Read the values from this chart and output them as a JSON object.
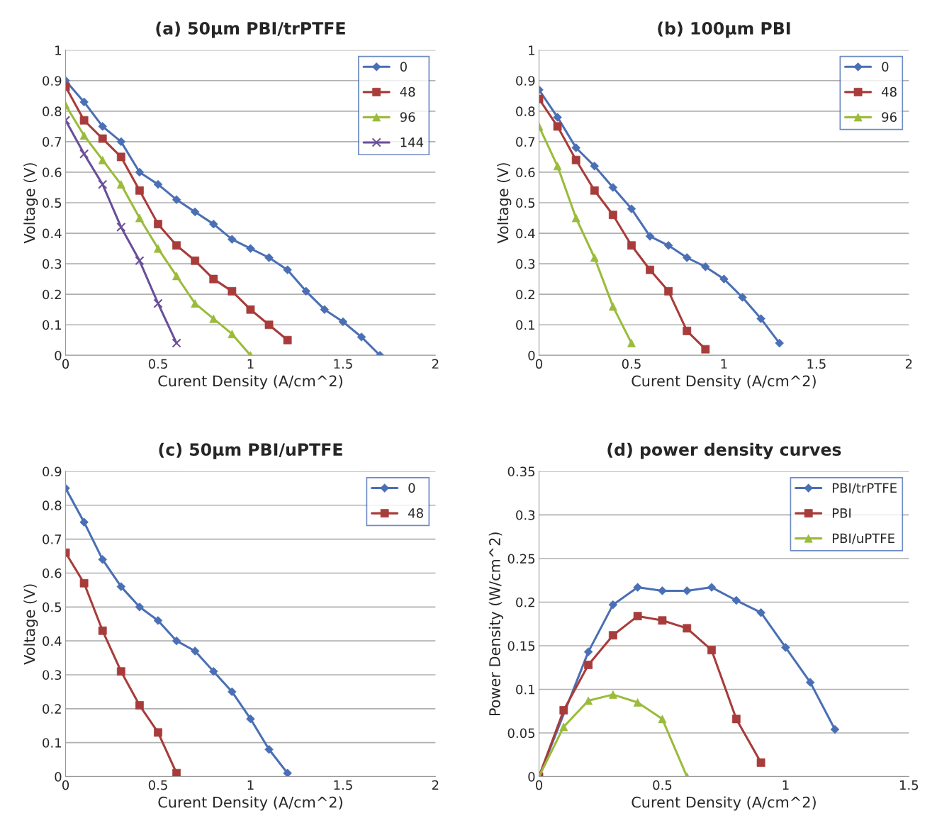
{
  "chart_data": [
    {
      "type": "line",
      "title": "(a) 50µm PBI/trPTFE",
      "xlabel": "Curent Density (A/cm^2)",
      "ylabel": "Voltage (V)",
      "xlim": [
        0,
        2
      ],
      "xticks": [
        0,
        0.5,
        1,
        1.5,
        2
      ],
      "ylim": [
        0,
        1
      ],
      "yticks": [
        0,
        0.1,
        0.2,
        0.3,
        0.4,
        0.5,
        0.6,
        0.7,
        0.8,
        0.9,
        1
      ],
      "grid": "y",
      "legend": "top right",
      "series": [
        {
          "name": "0",
          "color": "#4a6fb5",
          "marker": "diamond",
          "x": [
            0,
            0.1,
            0.2,
            0.3,
            0.4,
            0.5,
            0.6,
            0.7,
            0.8,
            0.9,
            1.0,
            1.1,
            1.2,
            1.3,
            1.4,
            1.5,
            1.6,
            1.7
          ],
          "values": [
            0.9,
            0.83,
            0.75,
            0.7,
            0.6,
            0.56,
            0.51,
            0.47,
            0.43,
            0.38,
            0.35,
            0.32,
            0.28,
            0.21,
            0.15,
            0.11,
            0.06,
            0.0
          ]
        },
        {
          "name": "48",
          "color": "#a83c3a",
          "marker": "square",
          "x": [
            0,
            0.1,
            0.2,
            0.3,
            0.4,
            0.5,
            0.6,
            0.7,
            0.8,
            0.9,
            1.0,
            1.1,
            1.2
          ],
          "values": [
            0.88,
            0.77,
            0.71,
            0.65,
            0.54,
            0.43,
            0.36,
            0.31,
            0.25,
            0.21,
            0.15,
            0.1,
            0.05
          ]
        },
        {
          "name": "96",
          "color": "#9bbb3b",
          "marker": "triangle",
          "x": [
            0,
            0.1,
            0.2,
            0.3,
            0.4,
            0.5,
            0.6,
            0.7,
            0.8,
            0.9,
            1.0
          ],
          "values": [
            0.82,
            0.72,
            0.64,
            0.56,
            0.45,
            0.35,
            0.26,
            0.17,
            0.12,
            0.07,
            0.0
          ]
        },
        {
          "name": "144",
          "color": "#6a4f9a",
          "marker": "cross",
          "x": [
            0,
            0.1,
            0.2,
            0.3,
            0.4,
            0.5,
            0.6
          ],
          "values": [
            0.77,
            0.66,
            0.56,
            0.42,
            0.31,
            0.17,
            0.04
          ]
        }
      ]
    },
    {
      "type": "line",
      "title": "(b) 100µm PBI",
      "xlabel": "Curent Density (A/cm^2)",
      "ylabel": "Voltage (V)",
      "xlim": [
        0,
        2
      ],
      "xticks": [
        0,
        0.5,
        1,
        1.5,
        2
      ],
      "ylim": [
        0,
        1
      ],
      "yticks": [
        0,
        0.1,
        0.2,
        0.3,
        0.4,
        0.5,
        0.6,
        0.7,
        0.8,
        0.9,
        1
      ],
      "grid": "y",
      "legend": "top right",
      "series": [
        {
          "name": "0",
          "color": "#4a6fb5",
          "marker": "diamond",
          "x": [
            0,
            0.1,
            0.2,
            0.3,
            0.4,
            0.5,
            0.6,
            0.7,
            0.8,
            0.9,
            1.0,
            1.1,
            1.2,
            1.3
          ],
          "values": [
            0.87,
            0.78,
            0.68,
            0.62,
            0.55,
            0.48,
            0.39,
            0.36,
            0.32,
            0.29,
            0.25,
            0.19,
            0.12,
            0.04
          ]
        },
        {
          "name": "48",
          "color": "#a83c3a",
          "marker": "square",
          "x": [
            0,
            0.1,
            0.2,
            0.3,
            0.4,
            0.5,
            0.6,
            0.7,
            0.8,
            0.9
          ],
          "values": [
            0.84,
            0.75,
            0.64,
            0.54,
            0.46,
            0.36,
            0.28,
            0.21,
            0.08,
            0.02
          ]
        },
        {
          "name": "96",
          "color": "#9bbb3b",
          "marker": "triangle",
          "x": [
            0,
            0.1,
            0.2,
            0.3,
            0.4,
            0.5
          ],
          "values": [
            0.75,
            0.62,
            0.45,
            0.32,
            0.16,
            0.04
          ]
        }
      ]
    },
    {
      "type": "line",
      "title": "(c) 50µm PBI/uPTFE",
      "xlabel": "Curent Density (A/cm^2)",
      "ylabel": "Voltage (V)",
      "xlim": [
        0,
        2
      ],
      "xticks": [
        0,
        0.5,
        1,
        1.5,
        2
      ],
      "ylim": [
        0,
        0.9
      ],
      "yticks": [
        0,
        0.1,
        0.2,
        0.3,
        0.4,
        0.5,
        0.6,
        0.7,
        0.8,
        0.9
      ],
      "grid": "y",
      "legend": "top right",
      "series": [
        {
          "name": "0",
          "color": "#4a6fb5",
          "marker": "diamond",
          "x": [
            0,
            0.1,
            0.2,
            0.3,
            0.4,
            0.5,
            0.6,
            0.7,
            0.8,
            0.9,
            1.0,
            1.1,
            1.2
          ],
          "values": [
            0.85,
            0.75,
            0.64,
            0.56,
            0.5,
            0.46,
            0.4,
            0.37,
            0.31,
            0.25,
            0.17,
            0.08,
            0.01
          ]
        },
        {
          "name": "48",
          "color": "#a83c3a",
          "marker": "square",
          "x": [
            0,
            0.1,
            0.2,
            0.3,
            0.4,
            0.5,
            0.6
          ],
          "values": [
            0.66,
            0.57,
            0.43,
            0.31,
            0.21,
            0.13,
            0.01
          ]
        }
      ]
    },
    {
      "type": "line",
      "title": "(d) power density curves",
      "xlabel": "Curent Density (A/cm^2)",
      "ylabel": "Power Density (W/cm^2)",
      "xlim": [
        0,
        1.5
      ],
      "xticks": [
        0,
        0.5,
        1,
        1.5
      ],
      "ylim": [
        0,
        0.35
      ],
      "yticks": [
        0,
        0.05,
        0.1,
        0.15,
        0.2,
        0.25,
        0.3,
        0.35
      ],
      "grid": "y",
      "legend": "top right",
      "series": [
        {
          "name": "PBI/trPTFE",
          "color": "#4a6fb5",
          "marker": "diamond",
          "x": [
            0,
            0.2,
            0.3,
            0.4,
            0.5,
            0.6,
            0.7,
            0.8,
            0.9,
            1.0,
            1.1,
            1.2
          ],
          "values": [
            0,
            0.143,
            0.197,
            0.217,
            0.213,
            0.213,
            0.217,
            0.202,
            0.188,
            0.148,
            0.108,
            0.054
          ]
        },
        {
          "name": "PBI",
          "color": "#a83c3a",
          "marker": "square",
          "x": [
            0,
            0.1,
            0.2,
            0.3,
            0.4,
            0.5,
            0.6,
            0.7,
            0.8,
            0.9
          ],
          "values": [
            0,
            0.076,
            0.128,
            0.162,
            0.184,
            0.179,
            0.17,
            0.145,
            0.066,
            0.016
          ]
        },
        {
          "name": "PBI/uPTFE",
          "color": "#9bbb3b",
          "marker": "triangle",
          "x": [
            0,
            0.1,
            0.2,
            0.3,
            0.4,
            0.5,
            0.6
          ],
          "values": [
            0,
            0.057,
            0.087,
            0.094,
            0.085,
            0.066,
            0.0
          ]
        }
      ]
    }
  ]
}
